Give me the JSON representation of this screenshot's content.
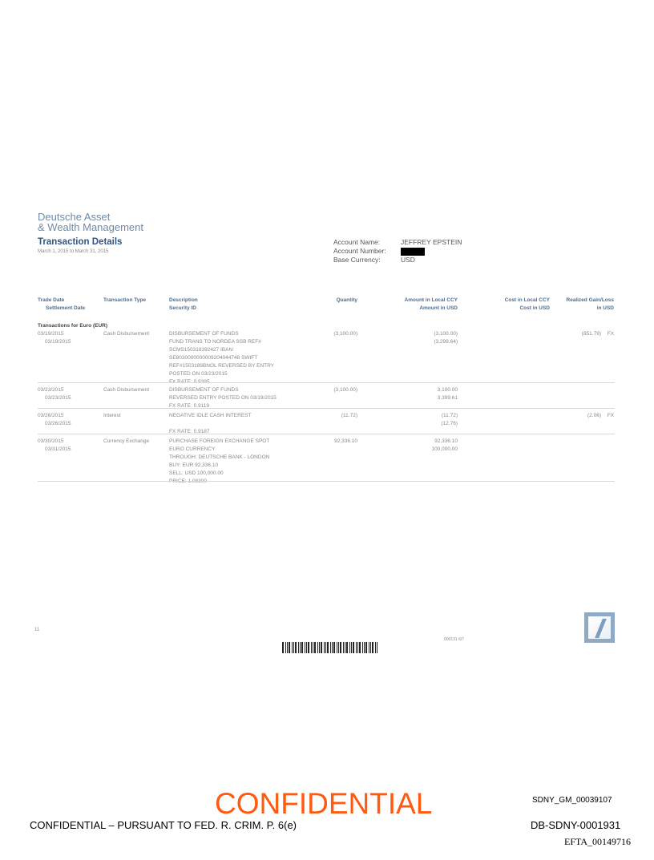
{
  "header": {
    "brand_line1": "Deutsche Asset",
    "brand_line2": "& Wealth Management",
    "title": "Transaction Details",
    "period": "March 1, 2015 to March 31, 2015"
  },
  "account": {
    "name_label": "Account Name:",
    "name_value": "JEFFREY EPSTEIN",
    "number_label": "Account Number:",
    "number_value_redacted": true,
    "currency_label": "Base Currency:",
    "currency_value": "USD"
  },
  "columns": {
    "trade_date": "Trade Date",
    "settlement_date": "Settlement Date",
    "type": "Transaction Type",
    "description": "Description",
    "security_id": "Security ID",
    "quantity": "Quantity",
    "amount_local": "Amount in Local CCY",
    "amount_usd": "Amount in USD",
    "cost_local": "Cost in Local CCY",
    "cost_usd": "Cost in USD",
    "gain_line1": "Realized Gain/Loss",
    "gain_line2": "in USD"
  },
  "section_title": "Transactions for Euro (EUR)",
  "rows": [
    {
      "trade_date": "03/19/2015",
      "settlement_date": "03/19/2015",
      "type": "Cash Disbursement",
      "description": [
        "DISBURSEMENT OF FUNDS",
        "FUND TRANS TO NORDEA SSB REF#",
        "SCMS150318392427 IBAN:",
        "SE8030000000009204044748 SWIFT",
        "REF#1503189BNOL REVERSED BY ENTRY",
        "POSTED ON 03/23/2015",
        "FX RATE:  0.9395"
      ],
      "quantity": "(3,100.00)",
      "amount_local": "(3,100.00)",
      "amount_usd": "(3,299.64)",
      "gain": "(851.79)",
      "gain_flag": "FX"
    },
    {
      "trade_date": "03/23/2015",
      "settlement_date": "03/23/2015",
      "type": "Cash Disbursement",
      "description": [
        "DISBURSEMENT OF FUNDS",
        "REVERSED ENTRY POSTED ON 03/19/2015",
        "FX RATE:  0.9119"
      ],
      "quantity": "(3,100.00)",
      "amount_local": "3,100.00",
      "amount_usd": "3,399.61"
    },
    {
      "trade_date": "03/26/2015",
      "settlement_date": "03/26/2015",
      "type": "Interest",
      "description": [
        "NEGATIVE IDLE CASH INTEREST",
        "",
        "FX RATE:  0.9187"
      ],
      "quantity": "(11.72)",
      "amount_local": "(11.72)",
      "amount_usd": "(12.76)",
      "gain": "(2.06)",
      "gain_flag": "FX"
    },
    {
      "trade_date": "03/30/2015",
      "settlement_date": "03/31/2015",
      "type": "Currency Exchange",
      "description": [
        "PURCHASE FOREIGN EXCHANGE SPOT",
        "EURO CURRENCY",
        "THROUGH: DEUTSCHE BANK - LONDON",
        "BUY: EUR  92,336.10",
        "SELL: USD  100,000.00",
        "PRICE:    1.08300"
      ],
      "quantity": "92,336.10",
      "amount_local": "92,336.10",
      "amount_usd": "100,000.00"
    }
  ],
  "footer": {
    "page_number": "11",
    "doc_code": "000131 6/7",
    "confidential_stamp": "CONFIDENTIAL",
    "bates_sdny_gm": "SDNY_GM_00039107",
    "pursuant_notice": "CONFIDENTIAL – PURSUANT TO FED. R. CRIM. P. 6(e)",
    "bates_db": "DB-SDNY-0001931",
    "bates_efta": "EFTA_00149716"
  },
  "colors": {
    "brand_blue": "#2f5684",
    "header_blue": "#4a6e95",
    "stamp_orange": "#ff5a10"
  }
}
